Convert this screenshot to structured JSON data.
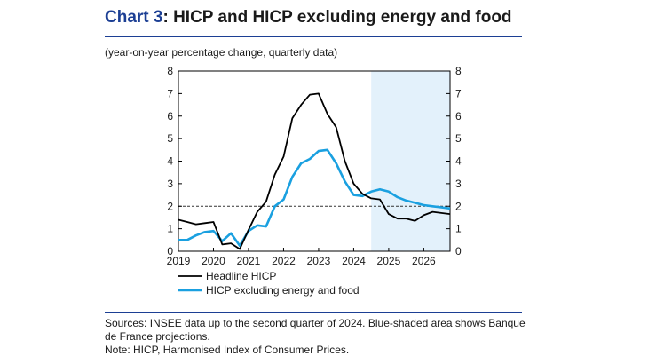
{
  "chart_data": {
    "type": "line",
    "title_prefix": "Chart 3",
    "title_rest": ": HICP and HICP excluding energy and food",
    "subtitle": "(year-on-year percentage change, quarterly data)",
    "x_ticks": [
      "2019",
      "2020",
      "2021",
      "2022",
      "2023",
      "2024",
      "2025",
      "2026"
    ],
    "y_ticks": [
      "0",
      "1",
      "2",
      "3",
      "4",
      "5",
      "6",
      "7",
      "8"
    ],
    "xlim": [
      2019.0,
      2026.75
    ],
    "ylim": [
      0,
      8
    ],
    "reference_line": 2,
    "projection_start": 2024.5,
    "projection_color": "#e3f1fb",
    "legend_position": "bottom-left",
    "series": [
      {
        "name": "Headline HICP",
        "color": "#000000",
        "x": [
          2019.0,
          2019.25,
          2019.5,
          2019.75,
          2020.0,
          2020.25,
          2020.5,
          2020.75,
          2021.0,
          2021.25,
          2021.5,
          2021.75,
          2022.0,
          2022.25,
          2022.5,
          2022.75,
          2023.0,
          2023.25,
          2023.5,
          2023.75,
          2024.0,
          2024.25,
          2024.5,
          2024.75,
          2025.0,
          2025.25,
          2025.5,
          2025.75,
          2026.0,
          2026.25,
          2026.5,
          2026.75
        ],
        "y": [
          1.4,
          1.3,
          1.2,
          1.25,
          1.3,
          0.3,
          0.35,
          0.1,
          0.95,
          1.75,
          2.2,
          3.4,
          4.2,
          5.9,
          6.5,
          6.95,
          7.0,
          6.1,
          5.5,
          4.0,
          3.0,
          2.55,
          2.35,
          2.3,
          1.65,
          1.45,
          1.45,
          1.35,
          1.6,
          1.75,
          1.7,
          1.65
        ]
      },
      {
        "name": "HICP excluding energy and food",
        "color": "#1aa0e0",
        "x": [
          2019.0,
          2019.25,
          2019.5,
          2019.75,
          2020.0,
          2020.25,
          2020.5,
          2020.75,
          2021.0,
          2021.25,
          2021.5,
          2021.75,
          2022.0,
          2022.25,
          2022.5,
          2022.75,
          2023.0,
          2023.25,
          2023.5,
          2023.75,
          2024.0,
          2024.25,
          2024.5,
          2024.75,
          2025.0,
          2025.25,
          2025.5,
          2025.75,
          2026.0,
          2026.25,
          2026.5,
          2026.75
        ],
        "y": [
          0.5,
          0.5,
          0.7,
          0.85,
          0.9,
          0.45,
          0.8,
          0.25,
          0.9,
          1.15,
          1.1,
          2.0,
          2.3,
          3.3,
          3.9,
          4.1,
          4.45,
          4.5,
          3.9,
          3.1,
          2.5,
          2.45,
          2.65,
          2.75,
          2.65,
          2.4,
          2.25,
          2.15,
          2.05,
          2.0,
          1.95,
          1.9
        ]
      }
    ]
  },
  "notes": [
    "Sources: INSEE data up to the second quarter of 2024. Blue-shaded area shows Banque de France projections.",
    "Note: HICP, Harmonised Index of Consumer Prices."
  ]
}
